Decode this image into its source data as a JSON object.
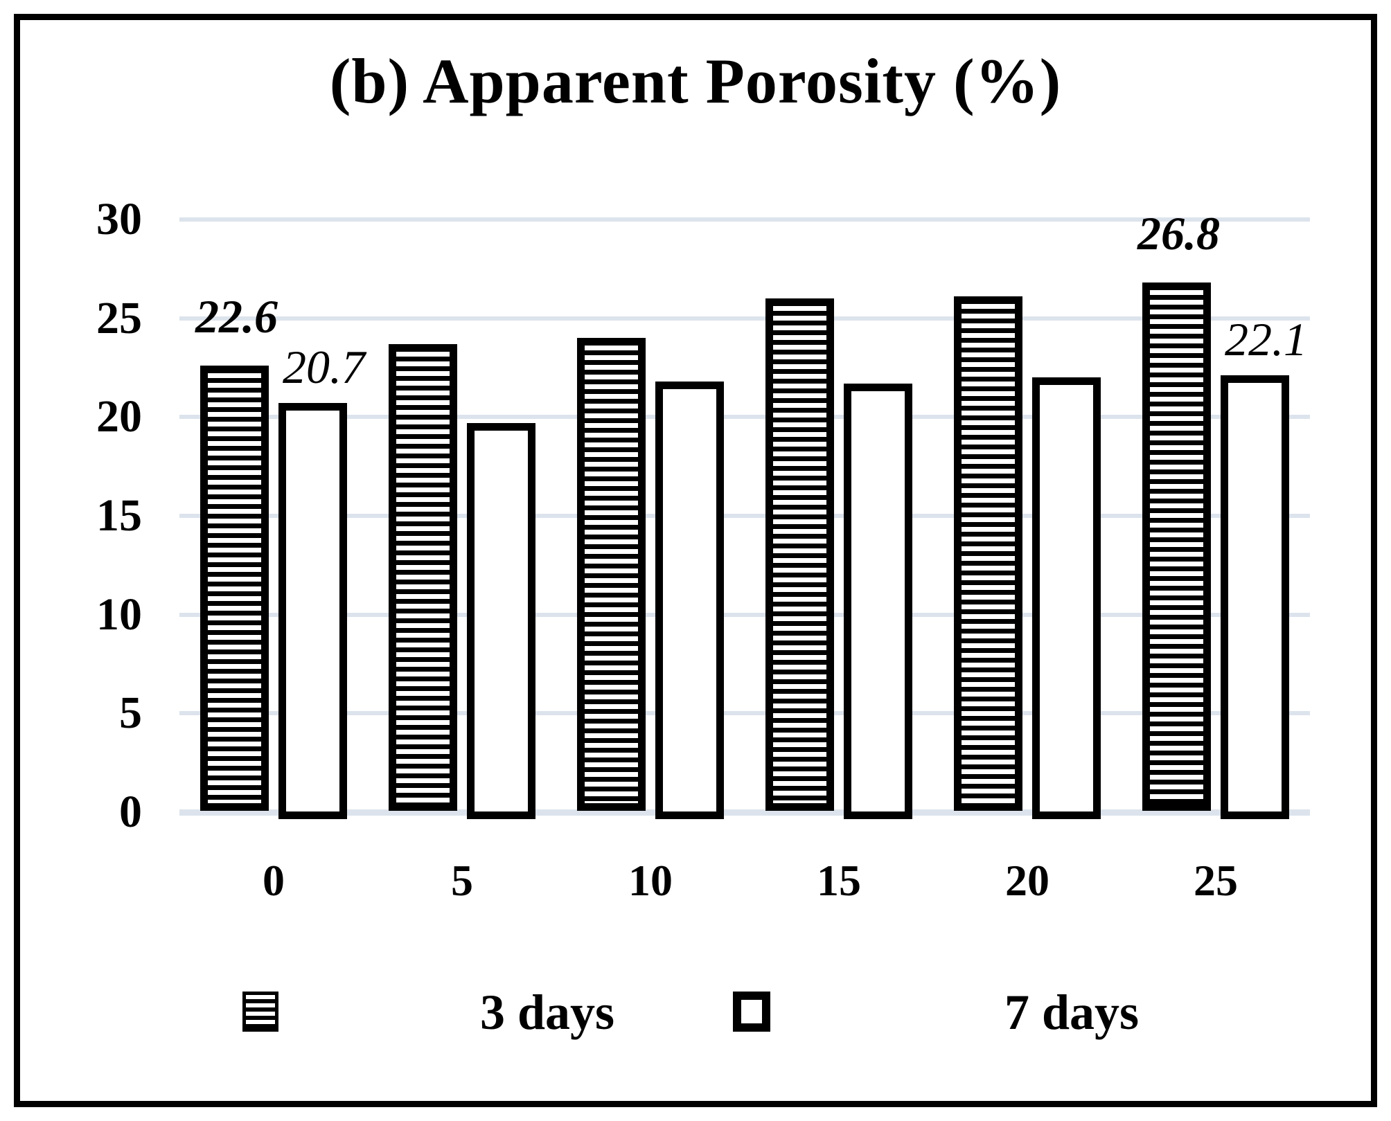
{
  "chart_data": {
    "type": "bar",
    "title": "(b) Apparent Porosity (%)",
    "categories": [
      "0",
      "5",
      "10",
      "15",
      "20",
      "25"
    ],
    "series": [
      {
        "name": "3 days",
        "pattern": "horizontal-hatch",
        "values": [
          22.6,
          23.7,
          24.0,
          26.0,
          26.1,
          26.8
        ]
      },
      {
        "name": "7 days",
        "pattern": "solid-white",
        "values": [
          20.7,
          19.7,
          21.8,
          21.7,
          22.0,
          22.1
        ]
      }
    ],
    "value_labels": [
      {
        "series": 0,
        "group": 0,
        "text": "22.6"
      },
      {
        "series": 1,
        "group": 0,
        "text": "20.7"
      },
      {
        "series": 0,
        "group": 5,
        "text": "26.8"
      },
      {
        "series": 1,
        "group": 5,
        "text": "22.1"
      }
    ],
    "y_axis": {
      "min": 0,
      "max": 30,
      "step": 5,
      "tick_labels": [
        "0",
        "5",
        "10",
        "15",
        "20",
        "25",
        "30"
      ]
    },
    "x_axis": {
      "tick_labels": [
        "0",
        "5",
        "10",
        "15",
        "20",
        "25"
      ]
    },
    "legend": {
      "position": "bottom",
      "entries": [
        "3 days",
        "7 days"
      ]
    },
    "grid": "horizontal",
    "colors": {
      "bar_outline": "#000000",
      "gridline": "#dce3ec",
      "background": "#ffffff"
    }
  }
}
